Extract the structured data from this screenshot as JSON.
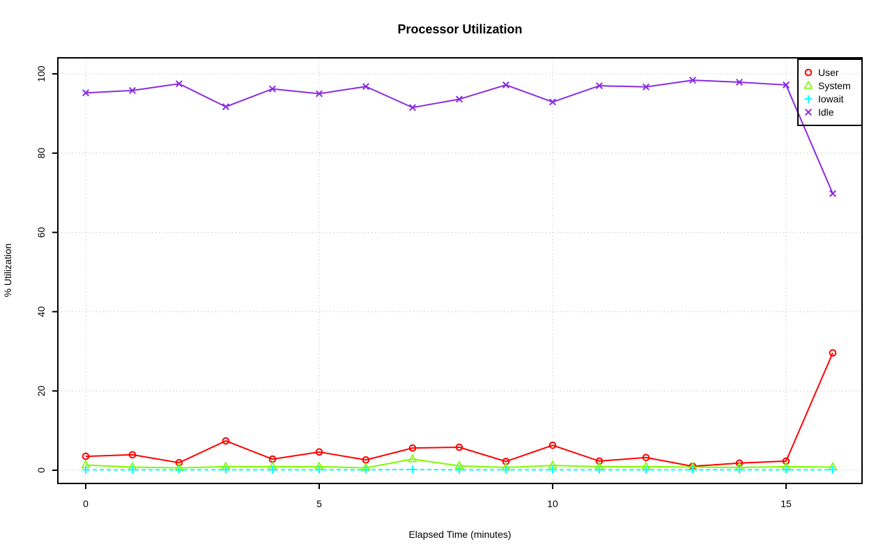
{
  "chart_data": {
    "type": "line",
    "title": "Processor Utilization",
    "xlabel": "Elapsed Time (minutes)",
    "ylabel": "% Utilization",
    "x": [
      0,
      1,
      2,
      3,
      4,
      5,
      6,
      7,
      8,
      9,
      10,
      11,
      12,
      13,
      14,
      15,
      16
    ],
    "series": [
      {
        "name": "User",
        "color": "#FF0000",
        "marker": "circle",
        "line_style": "solid",
        "values": [
          3.5,
          3.9,
          1.9,
          7.4,
          2.8,
          4.6,
          2.6,
          5.6,
          5.8,
          2.2,
          6.3,
          2.3,
          3.2,
          1.0,
          1.8,
          2.3,
          29.6
        ]
      },
      {
        "name": "System",
        "color": "#7CFC00",
        "marker": "triangle",
        "line_style": "solid",
        "values": [
          1.3,
          0.8,
          0.6,
          0.9,
          0.9,
          0.9,
          0.6,
          2.8,
          1.1,
          0.7,
          1.2,
          0.9,
          0.9,
          0.8,
          0.7,
          0.9,
          0.8
        ]
      },
      {
        "name": "Iowait",
        "color": "#00FFFF",
        "marker": "plus",
        "line_style": "dashed",
        "values": [
          0.1,
          0.1,
          0.1,
          0.1,
          0.1,
          0.1,
          0.1,
          0.2,
          0.1,
          0.1,
          0.1,
          0.1,
          0.1,
          0.1,
          0.1,
          0.1,
          0.1
        ]
      },
      {
        "name": "Idle",
        "color": "#8A2BE2",
        "marker": "x",
        "line_style": "solid",
        "values": [
          95.2,
          95.8,
          97.5,
          91.7,
          96.2,
          95.0,
          96.8,
          91.5,
          93.6,
          97.2,
          92.9,
          97.0,
          96.7,
          98.4,
          97.9,
          97.2,
          69.8
        ]
      }
    ],
    "xticks": [
      0,
      5,
      10,
      15
    ],
    "yticks": [
      0,
      20,
      40,
      60,
      80,
      100
    ],
    "xlim": [
      0,
      16
    ],
    "ylim": [
      0,
      100
    ],
    "grid": true,
    "grid_color": "#C8C8C8",
    "axis_color": "#000000",
    "legend_position": "top-right",
    "legend_labels": [
      "User",
      "System",
      "Iowait",
      "Idle"
    ]
  }
}
